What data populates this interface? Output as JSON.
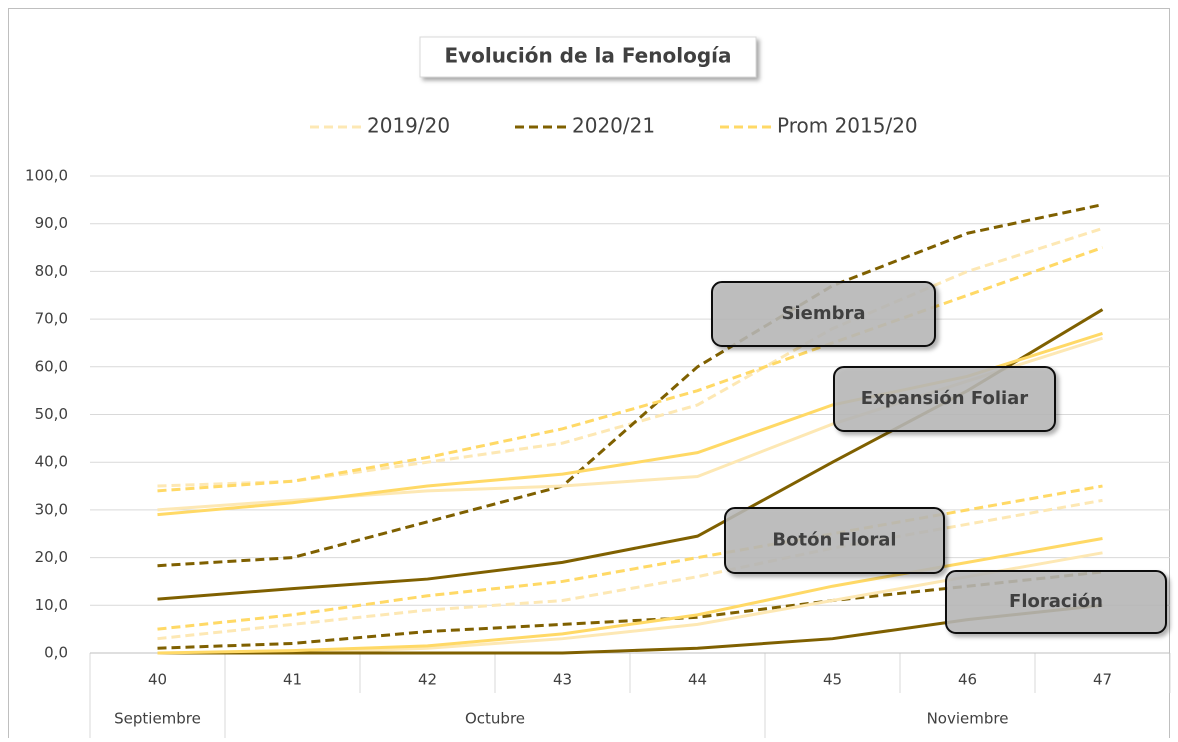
{
  "chart_data": {
    "type": "line",
    "title": "Evolución  de la Fenología",
    "categories": [
      "40",
      "41",
      "42",
      "43",
      "44",
      "45",
      "46",
      "47"
    ],
    "month_groups": [
      {
        "label": "Septiembre",
        "span": 1
      },
      {
        "label": "Octubre",
        "span": 4
      },
      {
        "label": "Noviembre",
        "span": 3
      }
    ],
    "series": [
      {
        "name": "2019/20",
        "color": "#fde8b4"
      },
      {
        "name": "2020/21",
        "color": "#7f6000"
      },
      {
        "name": "Prom 2015/20",
        "color": "#ffd966"
      }
    ],
    "stages": [
      {
        "label": "Siembra",
        "dashed": true,
        "values": [
          [
            35,
            36,
            40,
            44,
            52,
            68,
            80,
            89
          ],
          [
            18.3,
            20,
            27.5,
            35,
            60,
            77,
            88,
            94
          ],
          [
            34,
            36,
            41,
            47,
            55,
            65,
            75,
            85
          ]
        ]
      },
      {
        "label": "Expansión Foliar",
        "dashed": false,
        "values": [
          [
            30,
            32,
            34,
            35,
            37,
            48,
            57,
            66
          ],
          [
            11.3,
            13.5,
            15.5,
            19,
            24.5,
            40,
            55,
            72
          ],
          [
            29,
            31.5,
            35,
            37.5,
            42,
            52,
            58,
            67
          ]
        ]
      },
      {
        "label": "Botón Floral",
        "dashed": true,
        "values": [
          [
            3,
            6,
            9,
            11,
            16,
            22,
            27,
            32
          ],
          [
            1,
            2,
            4.5,
            6,
            7.5,
            11,
            14,
            17
          ],
          [
            5,
            8,
            12,
            15,
            20,
            25,
            30,
            35
          ]
        ]
      },
      {
        "label": "Floración",
        "dashed": false,
        "values": [
          [
            0,
            0,
            1,
            3,
            6,
            11,
            16,
            21
          ],
          [
            0,
            0,
            0,
            0,
            1,
            3,
            7,
            10
          ],
          [
            0,
            0.5,
            1.5,
            4,
            8,
            14,
            19,
            24
          ]
        ]
      }
    ],
    "ylim": [
      0,
      100
    ],
    "yticks": [
      {
        "value": 0,
        "label": "0,0"
      },
      {
        "value": 10,
        "label": "10,0"
      },
      {
        "value": 20,
        "label": "20,0"
      },
      {
        "value": 30,
        "label": "30,0"
      },
      {
        "value": 40,
        "label": "40,0"
      },
      {
        "value": 50,
        "label": "50,0"
      },
      {
        "value": 60,
        "label": "60,0"
      },
      {
        "value": 70,
        "label": "70,0"
      },
      {
        "value": 80,
        "label": "80,0"
      },
      {
        "value": 90,
        "label": "90,0"
      },
      {
        "value": 100,
        "label": "100,0"
      }
    ],
    "grid": true
  }
}
